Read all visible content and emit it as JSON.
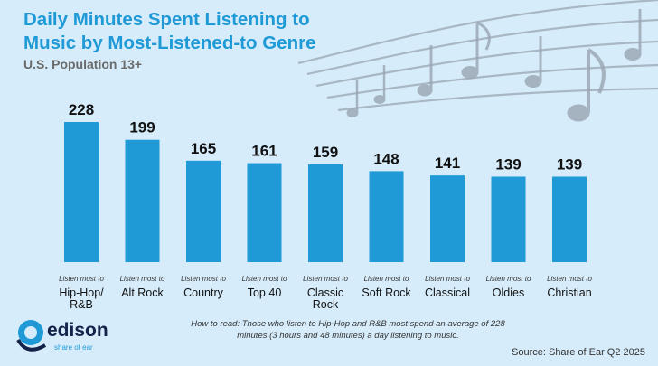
{
  "title_line1": "Daily Minutes Spent Listening to",
  "title_line2": "Music by Most-Listened-to Genre",
  "subtitle": "U.S. Population 13+",
  "note": "How to read: Those who listen to Hip-Hop and R&B most spend an average of 228 minutes (3 hours and 48 minutes) a day listening to music.",
  "source": "Source: Share of Ear Q2 2025",
  "logo": {
    "name": "edison",
    "tagline": "share of ear"
  },
  "colors": {
    "bar": "#1f9ad6",
    "title": "#1f9ad6",
    "background": "#d6ecfa",
    "brand": "#13234a"
  },
  "chart_data": {
    "type": "bar",
    "categories": [
      "Hip-Hop/\nR&B",
      "Alt Rock",
      "Country",
      "Top 40",
      "Classic\nRock",
      "Soft Rock",
      "Classical",
      "Oldies",
      "Christian"
    ],
    "category_prefix": "Listen most to",
    "values": [
      228,
      199,
      165,
      161,
      159,
      148,
      141,
      139,
      139
    ],
    "ylim": [
      0,
      228
    ],
    "grid": false,
    "data_labels": true
  }
}
